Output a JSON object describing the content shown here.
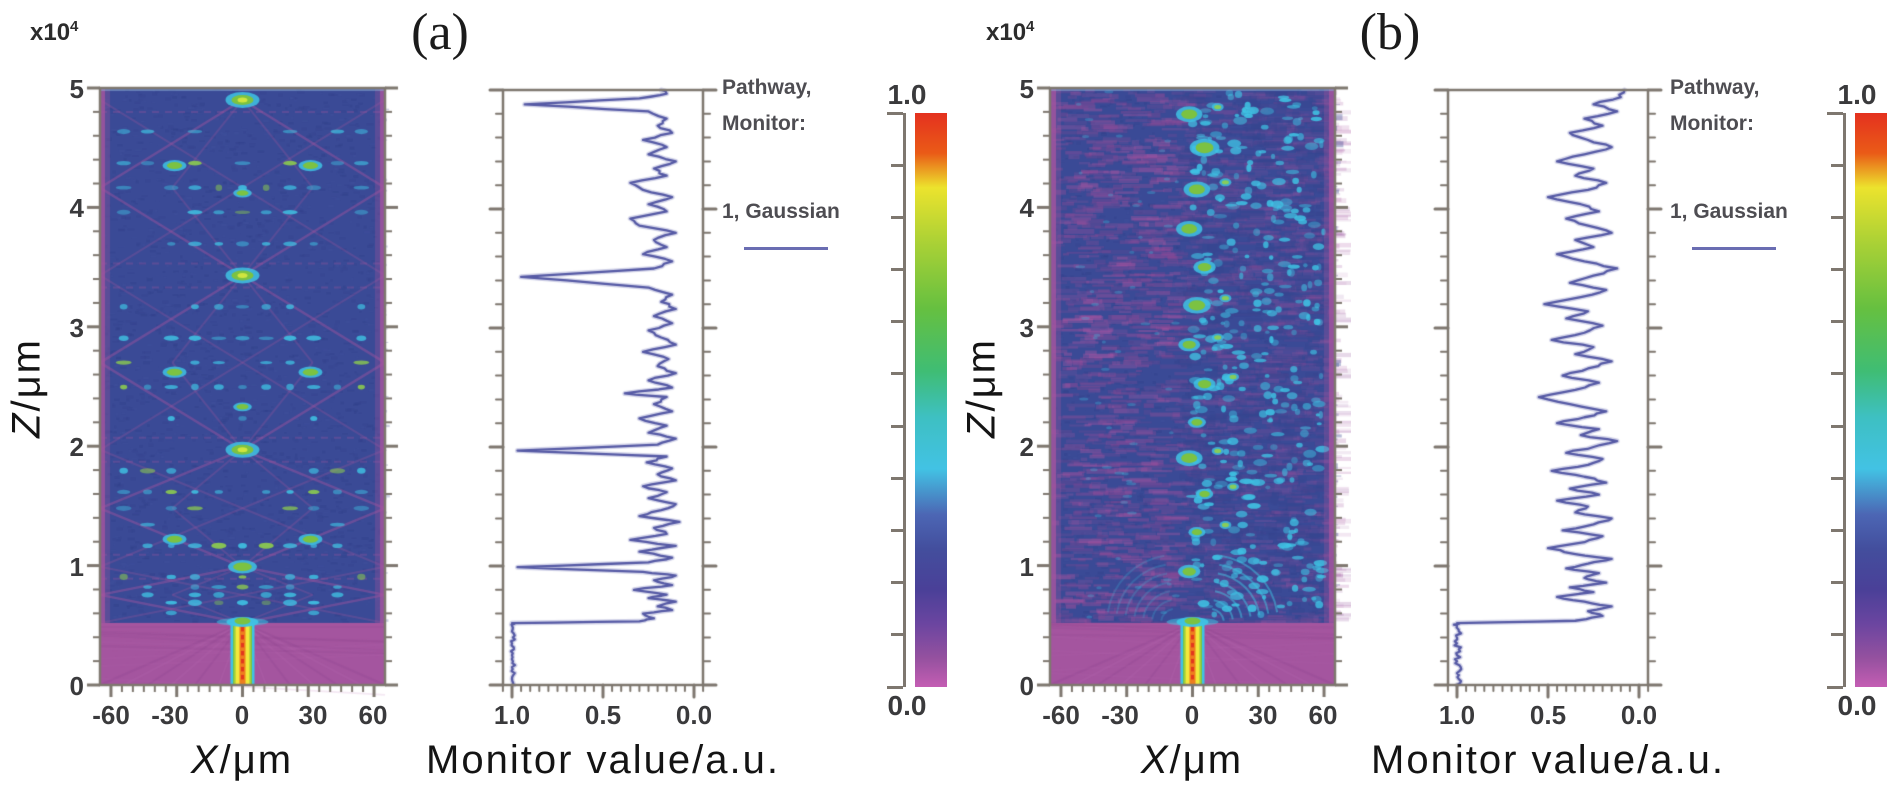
{
  "colors": {
    "field_bg": "#3A4A96",
    "magenta": "#A4559F",
    "magenta_light": "#B468AE",
    "magenta_dark": "#8C4590",
    "cyan": "#3FC3E4",
    "green": "#7CC242",
    "yellow": "#F2E93B",
    "orange": "#EE7E1E",
    "red": "#E2381D",
    "curve": "#565AA5",
    "curve_halo": "#ABADD6",
    "legend_line": "#6A6DB2",
    "axis": "#7E776F",
    "tick_label": "#3A3A3C"
  },
  "chart_data": [
    {
      "id": "field-a",
      "type": "heatmap",
      "panel_label": "(a)",
      "xlabel_var": "X",
      "xlabel_unit": "/μm",
      "ylabel_var": "Z",
      "ylabel_unit": "/μm",
      "y_exponent_base": "x10",
      "y_exponent_power": "4",
      "x_ticks": [
        -60,
        -30,
        0,
        30,
        60
      ],
      "y_ticks": [
        5,
        4,
        3,
        2,
        1,
        0
      ],
      "x_range_um": [
        -65,
        65
      ],
      "z_range_1e4_um": [
        0,
        5
      ],
      "value_range": [
        0,
        1
      ],
      "launch_waveguide": {
        "x_center_um": 0,
        "full_width_um": 11,
        "z_from": 0,
        "z_to": 0.52
      },
      "self_image_foci_z": [
        0.99,
        1.97,
        3.43,
        4.9
      ],
      "side_foci": [
        [
          -31,
          1.22
        ],
        [
          31,
          1.22
        ],
        [
          -31,
          2.62
        ],
        [
          31,
          2.62
        ],
        [
          -31,
          4.35
        ],
        [
          31,
          4.35
        ]
      ],
      "secondary_foci": [
        [
          0,
          4.12
        ],
        [
          0,
          2.33
        ]
      ],
      "description": "BPM intensity map, ordered lattice: Gaussian beam launched in a waveguide up to z=0.52x10^4 um, then a symmetric Talbot-like self-imaging diffraction pattern with periodic bright foci on the axis."
    },
    {
      "id": "monitor-a",
      "type": "line",
      "xlabel": "Monitor value/a.u.",
      "x_ticks": [
        "1.0",
        "0.5",
        "0.0"
      ],
      "x_range": [
        1.05,
        -0.05
      ],
      "z_range_1e4_um": [
        0,
        5
      ],
      "legend": {
        "header1": "Pathway,",
        "header2": "Monitor:",
        "entry": "1, Gaussian"
      },
      "series": [
        {
          "name": "1, Gaussian",
          "points": [
            [
              0,
              0.99
            ],
            [
              0.05,
              1
            ],
            [
              0.1,
              0.985
            ],
            [
              0.15,
              1
            ],
            [
              0.2,
              0.995
            ],
            [
              0.25,
              1
            ],
            [
              0.3,
              0.99
            ],
            [
              0.35,
              1
            ],
            [
              0.4,
              0.995
            ],
            [
              0.45,
              1
            ],
            [
              0.5,
              1
            ],
            [
              0.52,
              1
            ],
            [
              0.535,
              0.3
            ],
            [
              0.56,
              0.22
            ],
            [
              0.6,
              0.28
            ],
            [
              0.63,
              0.12
            ],
            [
              0.66,
              0.2
            ],
            [
              0.7,
              0.1
            ],
            [
              0.73,
              0.25
            ],
            [
              0.76,
              0.15
            ],
            [
              0.8,
              0.33
            ],
            [
              0.84,
              0.12
            ],
            [
              0.88,
              0.22
            ],
            [
              0.92,
              0.1
            ],
            [
              0.95,
              0.28
            ],
            [
              0.99,
              0.97
            ],
            [
              1.03,
              0.25
            ],
            [
              1.07,
              0.12
            ],
            [
              1.12,
              0.3
            ],
            [
              1.17,
              0.1
            ],
            [
              1.22,
              0.35
            ],
            [
              1.27,
              0.15
            ],
            [
              1.32,
              0.22
            ],
            [
              1.37,
              0.08
            ],
            [
              1.42,
              0.3
            ],
            [
              1.47,
              0.18
            ],
            [
              1.52,
              0.1
            ],
            [
              1.57,
              0.25
            ],
            [
              1.62,
              0.15
            ],
            [
              1.67,
              0.28
            ],
            [
              1.72,
              0.1
            ],
            [
              1.77,
              0.2
            ],
            [
              1.82,
              0.12
            ],
            [
              1.87,
              0.26
            ],
            [
              1.92,
              0.15
            ],
            [
              1.97,
              0.97
            ],
            [
              2.02,
              0.2
            ],
            [
              2.07,
              0.1
            ],
            [
              2.12,
              0.25
            ],
            [
              2.18,
              0.15
            ],
            [
              2.24,
              0.3
            ],
            [
              2.3,
              0.12
            ],
            [
              2.36,
              0.22
            ],
            [
              2.42,
              0.15
            ],
            [
              2.45,
              0.38
            ],
            [
              2.5,
              0.12
            ],
            [
              2.56,
              0.25
            ],
            [
              2.62,
              0.1
            ],
            [
              2.68,
              0.2
            ],
            [
              2.74,
              0.14
            ],
            [
              2.8,
              0.28
            ],
            [
              2.86,
              0.1
            ],
            [
              2.92,
              0.18
            ],
            [
              2.98,
              0.25
            ],
            [
              3.04,
              0.12
            ],
            [
              3.1,
              0.22
            ],
            [
              3.16,
              0.1
            ],
            [
              3.22,
              0.18
            ],
            [
              3.28,
              0.12
            ],
            [
              3.34,
              0.25
            ],
            [
              3.43,
              0.95
            ],
            [
              3.5,
              0.22
            ],
            [
              3.56,
              0.12
            ],
            [
              3.62,
              0.28
            ],
            [
              3.68,
              0.15
            ],
            [
              3.74,
              0.22
            ],
            [
              3.8,
              0.1
            ],
            [
              3.86,
              0.3
            ],
            [
              3.92,
              0.35
            ],
            [
              3.98,
              0.15
            ],
            [
              4.04,
              0.25
            ],
            [
              4.1,
              0.12
            ],
            [
              4.16,
              0.28
            ],
            [
              4.22,
              0.35
            ],
            [
              4.28,
              0.15
            ],
            [
              4.34,
              0.22
            ],
            [
              4.4,
              0.1
            ],
            [
              4.46,
              0.25
            ],
            [
              4.52,
              0.15
            ],
            [
              4.58,
              0.28
            ],
            [
              4.64,
              0.12
            ],
            [
              4.7,
              0.2
            ],
            [
              4.76,
              0.15
            ],
            [
              4.82,
              0.25
            ],
            [
              4.88,
              0.93
            ],
            [
              4.93,
              0.3
            ],
            [
              4.97,
              0.15
            ],
            [
              5,
              0.18
            ]
          ]
        }
      ]
    },
    {
      "id": "colorbar-a",
      "type": "colorbar",
      "max_label": "1.0",
      "min_label": "0.0",
      "stops": [
        [
          0,
          "#C45DB3"
        ],
        [
          0.05,
          "#95519F"
        ],
        [
          0.11,
          "#6B45A0"
        ],
        [
          0.17,
          "#4A4098"
        ],
        [
          0.24,
          "#434E9D"
        ],
        [
          0.3,
          "#4C66B4"
        ],
        [
          0.38,
          "#42C2E4"
        ],
        [
          0.47,
          "#3EC0C2"
        ],
        [
          0.55,
          "#3FBD74"
        ],
        [
          0.66,
          "#66C040"
        ],
        [
          0.78,
          "#AED235"
        ],
        [
          0.87,
          "#ECE32D"
        ],
        [
          0.93,
          "#EA5B17"
        ],
        [
          1,
          "#E4311F"
        ]
      ]
    },
    {
      "id": "field-b",
      "type": "heatmap",
      "panel_label": "(b)",
      "xlabel_var": "X",
      "xlabel_unit": "/μm",
      "ylabel_var": "Z",
      "ylabel_unit": "/μm",
      "y_exponent_base": "x10",
      "y_exponent_power": "4",
      "x_ticks": [
        -60,
        -30,
        0,
        30,
        60
      ],
      "y_ticks": [
        5,
        4,
        3,
        2,
        1,
        0
      ],
      "x_range_um": [
        -65,
        65
      ],
      "z_range_1e4_um": [
        0,
        5
      ],
      "value_range": [
        0,
        1
      ],
      "launch_waveguide": {
        "x_center_um": 0,
        "full_width_um": 11,
        "z_from": 0,
        "z_to": 0.52
      },
      "green_blobs_z": [
        0.95,
        1.28,
        1.6,
        1.9,
        2.2,
        2.52,
        2.85,
        3.18,
        3.5,
        3.82,
        4.15,
        4.5,
        4.78
      ],
      "description": "BPM intensity map, disordered lattice: same Gaussian launch waveguide, but above z=0.52x10^4 um the field breaks into an irregular speckle pattern; bright green speckle spots wander slightly right of the axis and cyan speckles spread over the right half."
    },
    {
      "id": "monitor-b",
      "type": "line",
      "xlabel": "Monitor value/a.u.",
      "x_ticks": [
        "1.0",
        "0.5",
        "0.0"
      ],
      "x_range": [
        1.05,
        -0.05
      ],
      "z_range_1e4_um": [
        0,
        5
      ],
      "legend": {
        "header1": "Pathway,",
        "header2": "Monitor:",
        "entry": "1, Gaussian"
      },
      "series": [
        {
          "name": "1, Gaussian",
          "points": [
            [
              0,
              1
            ],
            [
              0.05,
              0.99
            ],
            [
              0.1,
              1
            ],
            [
              0.15,
              0.98
            ],
            [
              0.2,
              1
            ],
            [
              0.25,
              1
            ],
            [
              0.3,
              0.99
            ],
            [
              0.35,
              1
            ],
            [
              0.4,
              1
            ],
            [
              0.45,
              0.99
            ],
            [
              0.5,
              1
            ],
            [
              0.52,
              1
            ],
            [
              0.54,
              0.35
            ],
            [
              0.58,
              0.2
            ],
            [
              0.62,
              0.28
            ],
            [
              0.66,
              0.15
            ],
            [
              0.7,
              0.3
            ],
            [
              0.74,
              0.45
            ],
            [
              0.78,
              0.25
            ],
            [
              0.82,
              0.38
            ],
            [
              0.86,
              0.18
            ],
            [
              0.9,
              0.3
            ],
            [
              0.94,
              0.22
            ],
            [
              0.98,
              0.4
            ],
            [
              1.02,
              0.28
            ],
            [
              1.06,
              0.15
            ],
            [
              1.1,
              0.35
            ],
            [
              1.15,
              0.5
            ],
            [
              1.2,
              0.3
            ],
            [
              1.25,
              0.2
            ],
            [
              1.3,
              0.42
            ],
            [
              1.35,
              0.25
            ],
            [
              1.4,
              0.15
            ],
            [
              1.45,
              0.35
            ],
            [
              1.5,
              0.28
            ],
            [
              1.55,
              0.45
            ],
            [
              1.6,
              0.22
            ],
            [
              1.65,
              0.38
            ],
            [
              1.7,
              0.18
            ],
            [
              1.75,
              0.3
            ],
            [
              1.8,
              0.48
            ],
            [
              1.85,
              0.28
            ],
            [
              1.9,
              0.2
            ],
            [
              1.95,
              0.4
            ],
            [
              2,
              0.25
            ],
            [
              2.05,
              0.12
            ],
            [
              2.1,
              0.32
            ],
            [
              2.15,
              0.22
            ],
            [
              2.2,
              0.45
            ],
            [
              2.25,
              0.3
            ],
            [
              2.3,
              0.18
            ],
            [
              2.36,
              0.38
            ],
            [
              2.42,
              0.55
            ],
            [
              2.48,
              0.35
            ],
            [
              2.54,
              0.22
            ],
            [
              2.6,
              0.42
            ],
            [
              2.66,
              0.28
            ],
            [
              2.72,
              0.15
            ],
            [
              2.78,
              0.35
            ],
            [
              2.84,
              0.25
            ],
            [
              2.9,
              0.48
            ],
            [
              2.96,
              0.3
            ],
            [
              3.02,
              0.2
            ],
            [
              3.08,
              0.4
            ],
            [
              3.14,
              0.28
            ],
            [
              3.2,
              0.52
            ],
            [
              3.26,
              0.32
            ],
            [
              3.32,
              0.18
            ],
            [
              3.38,
              0.38
            ],
            [
              3.44,
              0.25
            ],
            [
              3.5,
              0.12
            ],
            [
              3.56,
              0.3
            ],
            [
              3.62,
              0.45
            ],
            [
              3.68,
              0.25
            ],
            [
              3.74,
              0.35
            ],
            [
              3.8,
              0.15
            ],
            [
              3.86,
              0.28
            ],
            [
              3.92,
              0.4
            ],
            [
              3.98,
              0.22
            ],
            [
              4.04,
              0.32
            ],
            [
              4.1,
              0.5
            ],
            [
              4.16,
              0.28
            ],
            [
              4.22,
              0.18
            ],
            [
              4.28,
              0.35
            ],
            [
              4.34,
              0.25
            ],
            [
              4.4,
              0.45
            ],
            [
              4.46,
              0.3
            ],
            [
              4.52,
              0.15
            ],
            [
              4.58,
              0.28
            ],
            [
              4.64,
              0.38
            ],
            [
              4.7,
              0.2
            ],
            [
              4.76,
              0.3
            ],
            [
              4.82,
              0.12
            ],
            [
              4.88,
              0.25
            ],
            [
              4.94,
              0.1
            ],
            [
              5,
              0.08
            ]
          ]
        }
      ]
    },
    {
      "id": "colorbar-b",
      "type": "colorbar",
      "max_label": "1.0",
      "min_label": "0.0",
      "stops": [
        [
          0,
          "#C45DB3"
        ],
        [
          0.05,
          "#95519F"
        ],
        [
          0.11,
          "#6B45A0"
        ],
        [
          0.17,
          "#4A4098"
        ],
        [
          0.24,
          "#434E9D"
        ],
        [
          0.3,
          "#4C66B4"
        ],
        [
          0.38,
          "#42C2E4"
        ],
        [
          0.47,
          "#3EC0C2"
        ],
        [
          0.55,
          "#3FBD74"
        ],
        [
          0.66,
          "#66C040"
        ],
        [
          0.78,
          "#AED235"
        ],
        [
          0.87,
          "#ECE32D"
        ],
        [
          0.93,
          "#EA5B17"
        ],
        [
          1,
          "#E4311F"
        ]
      ]
    }
  ]
}
